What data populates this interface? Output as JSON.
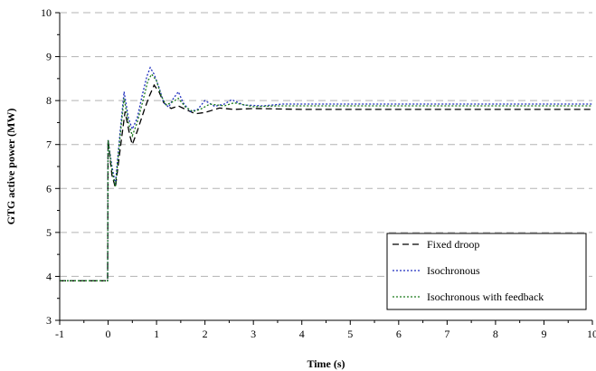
{
  "chart_data": {
    "type": "line",
    "title": "",
    "xlabel": "Time (s)",
    "ylabel": "GTG active power (MW)",
    "xlim": [
      -1,
      10
    ],
    "ylim": [
      3,
      10
    ],
    "xticks": [
      "-1",
      "0",
      "1",
      "2",
      "3",
      "4",
      "5",
      "6",
      "7",
      "8",
      "9",
      "10"
    ],
    "yticks": [
      "3",
      "4",
      "5",
      "6",
      "7",
      "8",
      "9",
      "10"
    ],
    "grid": "horizontal dashed",
    "legend_position": "bottom-right",
    "series": [
      {
        "name": "Fixed droop",
        "color": "#000000",
        "dash": "dashed",
        "points": [
          [
            -1,
            3.9
          ],
          [
            -0.01,
            3.9
          ],
          [
            0.0,
            7.1
          ],
          [
            0.08,
            6.3
          ],
          [
            0.15,
            6.02
          ],
          [
            0.25,
            6.9
          ],
          [
            0.35,
            7.75
          ],
          [
            0.45,
            7.2
          ],
          [
            0.5,
            7.0
          ],
          [
            0.6,
            7.3
          ],
          [
            0.75,
            7.8
          ],
          [
            0.85,
            8.1
          ],
          [
            0.95,
            8.35
          ],
          [
            1.05,
            8.2
          ],
          [
            1.15,
            7.95
          ],
          [
            1.3,
            7.82
          ],
          [
            1.45,
            7.88
          ],
          [
            1.6,
            7.8
          ],
          [
            1.8,
            7.7
          ],
          [
            2.0,
            7.73
          ],
          [
            2.3,
            7.83
          ],
          [
            2.6,
            7.8
          ],
          [
            3.0,
            7.82
          ],
          [
            4.0,
            7.8
          ],
          [
            10,
            7.8
          ]
        ]
      },
      {
        "name": "Isochronous",
        "color": "#1f2fbf",
        "dash": "dotted",
        "points": [
          [
            -1,
            3.9
          ],
          [
            -0.01,
            3.9
          ],
          [
            0.0,
            7.1
          ],
          [
            0.08,
            6.5
          ],
          [
            0.15,
            6.1
          ],
          [
            0.25,
            7.3
          ],
          [
            0.33,
            8.2
          ],
          [
            0.42,
            7.6
          ],
          [
            0.5,
            7.35
          ],
          [
            0.6,
            7.6
          ],
          [
            0.7,
            8.1
          ],
          [
            0.8,
            8.55
          ],
          [
            0.87,
            8.75
          ],
          [
            0.95,
            8.6
          ],
          [
            1.05,
            8.3
          ],
          [
            1.15,
            7.95
          ],
          [
            1.25,
            7.85
          ],
          [
            1.35,
            8.05
          ],
          [
            1.45,
            8.2
          ],
          [
            1.55,
            7.95
          ],
          [
            1.7,
            7.75
          ],
          [
            1.85,
            7.8
          ],
          [
            2.0,
            8.0
          ],
          [
            2.2,
            7.87
          ],
          [
            2.4,
            7.92
          ],
          [
            2.55,
            8.02
          ],
          [
            2.8,
            7.9
          ],
          [
            3.2,
            7.88
          ],
          [
            3.6,
            7.92
          ],
          [
            4.0,
            7.92
          ],
          [
            10,
            7.92
          ]
        ]
      },
      {
        "name": "Isochronous with feedback",
        "color": "#1a7a1a",
        "dash": "dotted",
        "points": [
          [
            -1,
            3.9
          ],
          [
            -0.01,
            3.9
          ],
          [
            0.0,
            7.1
          ],
          [
            0.08,
            6.4
          ],
          [
            0.15,
            6.05
          ],
          [
            0.25,
            7.2
          ],
          [
            0.33,
            8.05
          ],
          [
            0.42,
            7.5
          ],
          [
            0.5,
            7.2
          ],
          [
            0.6,
            7.5
          ],
          [
            0.72,
            8.0
          ],
          [
            0.82,
            8.45
          ],
          [
            0.9,
            8.6
          ],
          [
            1.0,
            8.45
          ],
          [
            1.1,
            8.1
          ],
          [
            1.2,
            7.9
          ],
          [
            1.35,
            7.98
          ],
          [
            1.45,
            8.05
          ],
          [
            1.6,
            7.85
          ],
          [
            1.75,
            7.75
          ],
          [
            1.9,
            7.8
          ],
          [
            2.1,
            7.92
          ],
          [
            2.4,
            7.88
          ],
          [
            2.6,
            7.95
          ],
          [
            3.0,
            7.86
          ],
          [
            3.5,
            7.88
          ],
          [
            4.0,
            7.88
          ],
          [
            10,
            7.88
          ]
        ]
      }
    ]
  }
}
